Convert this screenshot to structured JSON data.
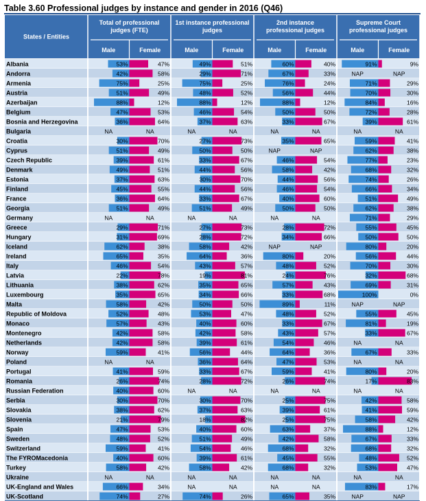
{
  "title": "Table 3.60  Professional judges by instance and gender in 2016 (Q46)",
  "chart_data": {
    "type": "table",
    "row_header": "States / Entities",
    "column_groups": [
      {
        "name": "Total of professional judges (FTE)",
        "lines": [
          "Total of professional",
          "judges (FTE)"
        ]
      },
      {
        "name": "1st instance professional judges",
        "lines": [
          "1st instance professional",
          "judges"
        ]
      },
      {
        "name": "2nd instance professional judges",
        "lines": [
          "2nd instance",
          "professional judges"
        ]
      },
      {
        "name": "Supreme Court professional judges",
        "lines": [
          "Supreme Court",
          "professional judges"
        ]
      }
    ],
    "sub_columns": [
      "Male",
      "Female"
    ],
    "colors": {
      "header": "#3a6fb0",
      "male": "#3d8fd6",
      "female": "#d4007a",
      "band_light": "#dbe7f4",
      "band_mid": "#c3d4e8",
      "title_line": "#1f4e8c"
    },
    "rows": [
      {
        "name": "Albania",
        "male": [
          "53%",
          "49%",
          "60%",
          "91%"
        ],
        "female": [
          "47%",
          "51%",
          "40%",
          "9%"
        ]
      },
      {
        "name": "Andorra",
        "male": [
          "42%",
          "29%",
          "67%",
          "NAP"
        ],
        "female": [
          "58%",
          "71%",
          "33%",
          "NAP"
        ]
      },
      {
        "name": "Armenia",
        "male": [
          "75%",
          "75%",
          "76%",
          "71%"
        ],
        "female": [
          "25%",
          "25%",
          "24%",
          "29%"
        ]
      },
      {
        "name": "Austria",
        "male": [
          "51%",
          "48%",
          "56%",
          "70%"
        ],
        "female": [
          "49%",
          "52%",
          "44%",
          "30%"
        ]
      },
      {
        "name": "Azerbaijan",
        "male": [
          "88%",
          "88%",
          "88%",
          "84%"
        ],
        "female": [
          "12%",
          "12%",
          "12%",
          "16%"
        ]
      },
      {
        "name": "Belgium",
        "male": [
          "47%",
          "46%",
          "50%",
          "72%"
        ],
        "female": [
          "53%",
          "54%",
          "50%",
          "28%"
        ]
      },
      {
        "name": "Bosnia and Herzegovina",
        "male": [
          "36%",
          "37%",
          "33%",
          "39%"
        ],
        "female": [
          "64%",
          "63%",
          "67%",
          "61%"
        ]
      },
      {
        "name": "Bulgaria",
        "male": [
          "NA",
          "NA",
          "NA",
          "NA"
        ],
        "female": [
          "NA",
          "NA",
          "NA",
          "NA"
        ]
      },
      {
        "name": "Croatia",
        "male": [
          "30%",
          "27%",
          "35%",
          "59%"
        ],
        "female": [
          "70%",
          "73%",
          "65%",
          "41%"
        ]
      },
      {
        "name": "Cyprus",
        "male": [
          "51%",
          "50%",
          "NAP",
          "62%"
        ],
        "female": [
          "49%",
          "50%",
          "NAP",
          "38%"
        ]
      },
      {
        "name": "Czech Republic",
        "male": [
          "39%",
          "33%",
          "46%",
          "77%"
        ],
        "female": [
          "61%",
          "67%",
          "54%",
          "23%"
        ]
      },
      {
        "name": "Denmark",
        "male": [
          "49%",
          "44%",
          "58%",
          "68%"
        ],
        "female": [
          "51%",
          "56%",
          "42%",
          "32%"
        ]
      },
      {
        "name": "Estonia",
        "male": [
          "37%",
          "30%",
          "44%",
          "74%"
        ],
        "female": [
          "63%",
          "70%",
          "56%",
          "26%"
        ]
      },
      {
        "name": "Finland",
        "male": [
          "45%",
          "44%",
          "46%",
          "66%"
        ],
        "female": [
          "55%",
          "56%",
          "54%",
          "34%"
        ]
      },
      {
        "name": "France",
        "male": [
          "36%",
          "33%",
          "40%",
          "51%"
        ],
        "female": [
          "64%",
          "67%",
          "60%",
          "49%"
        ]
      },
      {
        "name": "Georgia",
        "male": [
          "51%",
          "51%",
          "50%",
          "62%"
        ],
        "female": [
          "49%",
          "49%",
          "50%",
          "38%"
        ]
      },
      {
        "name": "Germany",
        "male": [
          "NA",
          "NA",
          "NA",
          "71%"
        ],
        "female": [
          "NA",
          "NA",
          "NA",
          "29%"
        ]
      },
      {
        "name": "Greece",
        "male": [
          "29%",
          "27%",
          "28%",
          "55%"
        ],
        "female": [
          "71%",
          "73%",
          "72%",
          "45%"
        ]
      },
      {
        "name": "Hungary",
        "male": [
          "31%",
          "28%",
          "34%",
          "50%"
        ],
        "female": [
          "69%",
          "72%",
          "66%",
          "50%"
        ]
      },
      {
        "name": "Iceland",
        "male": [
          "62%",
          "58%",
          "NAP",
          "80%"
        ],
        "female": [
          "38%",
          "42%",
          "NAP",
          "20%"
        ]
      },
      {
        "name": "Ireland",
        "male": [
          "65%",
          "64%",
          "80%",
          "56%"
        ],
        "female": [
          "35%",
          "36%",
          "20%",
          "44%"
        ]
      },
      {
        "name": "Italy",
        "male": [
          "46%",
          "43%",
          "48%",
          "70%"
        ],
        "female": [
          "54%",
          "57%",
          "52%",
          "30%"
        ]
      },
      {
        "name": "Latvia",
        "male": [
          "22%",
          "19%",
          "24%",
          "32%"
        ],
        "female": [
          "78%",
          "81%",
          "76%",
          "68%"
        ]
      },
      {
        "name": "Lithuania",
        "male": [
          "38%",
          "35%",
          "57%",
          "69%"
        ],
        "female": [
          "62%",
          "65%",
          "43%",
          "31%"
        ]
      },
      {
        "name": "Luxembourg",
        "male": [
          "35%",
          "34%",
          "33%",
          "100%"
        ],
        "female": [
          "65%",
          "66%",
          "68%",
          "0%"
        ]
      },
      {
        "name": "Malta",
        "male": [
          "58%",
          "50%",
          "89%",
          "NAP"
        ],
        "female": [
          "42%",
          "50%",
          "11%",
          "NAP"
        ]
      },
      {
        "name": "Republic of Moldova",
        "male": [
          "52%",
          "53%",
          "48%",
          "55%"
        ],
        "female": [
          "48%",
          "47%",
          "52%",
          "45%"
        ]
      },
      {
        "name": "Monaco",
        "male": [
          "57%",
          "40%",
          "33%",
          "81%"
        ],
        "female": [
          "43%",
          "60%",
          "67%",
          "19%"
        ]
      },
      {
        "name": "Montenegro",
        "male": [
          "42%",
          "42%",
          "43%",
          "33%"
        ],
        "female": [
          "58%",
          "58%",
          "57%",
          "67%"
        ]
      },
      {
        "name": "Netherlands",
        "male": [
          "42%",
          "39%",
          "54%",
          "NA"
        ],
        "female": [
          "58%",
          "61%",
          "46%",
          "NA"
        ]
      },
      {
        "name": "Norway",
        "male": [
          "59%",
          "56%",
          "64%",
          "67%"
        ],
        "female": [
          "41%",
          "44%",
          "36%",
          "33%"
        ]
      },
      {
        "name": "Poland",
        "male": [
          "NA",
          "36%",
          "47%",
          "NA"
        ],
        "female": [
          "NA",
          "64%",
          "53%",
          "NA"
        ]
      },
      {
        "name": "Portugal",
        "male": [
          "41%",
          "33%",
          "59%",
          "80%"
        ],
        "female": [
          "59%",
          "67%",
          "41%",
          "20%"
        ]
      },
      {
        "name": "Romania",
        "male": [
          "26%",
          "28%",
          "26%",
          "17%"
        ],
        "female": [
          "74%",
          "72%",
          "74%",
          "83%"
        ]
      },
      {
        "name": "Russian Federation",
        "male": [
          "40%",
          "NA",
          "NA",
          "NA"
        ],
        "female": [
          "60%",
          "NA",
          "NA",
          "NA"
        ]
      },
      {
        "name": "Serbia",
        "male": [
          "30%",
          "30%",
          "25%",
          "42%"
        ],
        "female": [
          "70%",
          "70%",
          "75%",
          "58%"
        ]
      },
      {
        "name": "Slovakia",
        "male": [
          "38%",
          "37%",
          "39%",
          "41%"
        ],
        "female": [
          "62%",
          "63%",
          "61%",
          "59%"
        ]
      },
      {
        "name": "Slovenia",
        "male": [
          "21%",
          "18%",
          "25%",
          "58%"
        ],
        "female": [
          "79%",
          "82%",
          "75%",
          "42%"
        ]
      },
      {
        "name": "Spain",
        "male": [
          "47%",
          "40%",
          "63%",
          "88%"
        ],
        "female": [
          "53%",
          "60%",
          "37%",
          "12%"
        ]
      },
      {
        "name": "Sweden",
        "male": [
          "48%",
          "51%",
          "42%",
          "67%"
        ],
        "female": [
          "52%",
          "49%",
          "58%",
          "33%"
        ]
      },
      {
        "name": "Switzerland",
        "male": [
          "59%",
          "54%",
          "68%",
          "68%"
        ],
        "female": [
          "41%",
          "46%",
          "32%",
          "32%"
        ]
      },
      {
        "name": "The FYROMacedonia",
        "male": [
          "40%",
          "39%",
          "45%",
          "48%"
        ],
        "female": [
          "60%",
          "61%",
          "55%",
          "52%"
        ]
      },
      {
        "name": "Turkey",
        "male": [
          "58%",
          "58%",
          "68%",
          "53%"
        ],
        "female": [
          "42%",
          "42%",
          "32%",
          "47%"
        ]
      },
      {
        "name": "Ukraine",
        "male": [
          "NA",
          "NA",
          "NA",
          "NA"
        ],
        "female": [
          "NA",
          "NA",
          "NA",
          "NA"
        ]
      },
      {
        "name": "UK-England and Wales",
        "male": [
          "66%",
          "NA",
          "NA",
          "83%"
        ],
        "female": [
          "34%",
          "NA",
          "NA",
          "17%"
        ]
      },
      {
        "name": "UK-Scotland",
        "male": [
          "74%",
          "74%",
          "65%",
          "NAP"
        ],
        "female": [
          "27%",
          "26%",
          "35%",
          "NAP"
        ]
      }
    ]
  }
}
